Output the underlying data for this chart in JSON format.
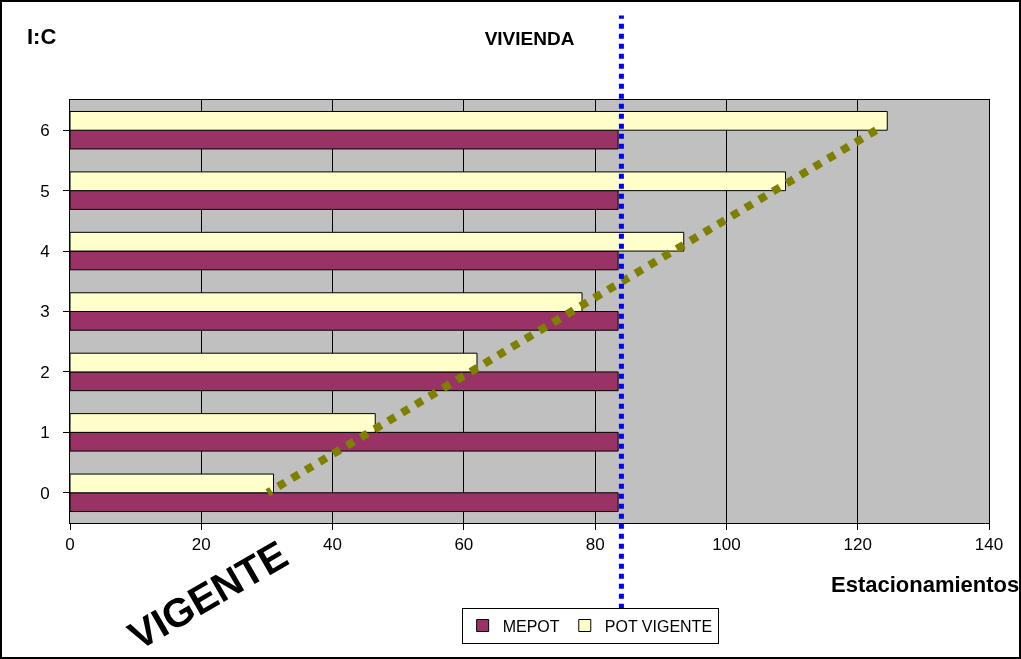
{
  "chart_data": {
    "type": "bar",
    "orientation": "horizontal",
    "title": "VIVIENDA",
    "xlabel": "Estacionamientos",
    "categories": [
      "6",
      "5",
      "4",
      "3",
      "2",
      "1",
      "0"
    ],
    "series": [
      {
        "name": "MEPOT",
        "color": "#993366",
        "values": [
          83.5,
          83.5,
          83.5,
          83.5,
          83.5,
          83.5,
          83.5
        ]
      },
      {
        "name": "POT VIGENTE",
        "color": "#ffffcc",
        "values": [
          124.5,
          109,
          93.5,
          78,
          62,
          46.5,
          31
        ]
      },
      {
        "type": "line",
        "color": "#808000",
        "line_style": "dotted",
        "values": [
          122.8,
          107.3,
          91.9,
          76.4,
          61,
          45.6,
          30.1
        ]
      }
    ],
    "xlim": [
      0,
      140
    ],
    "xticks": [
      0,
      20,
      40,
      60,
      80,
      100,
      120,
      140
    ],
    "grid": "x",
    "legend": "bottom",
    "ref_lines": [
      {
        "axis": "x",
        "value": 84,
        "color": "#0000ff",
        "line_style": "dotted"
      }
    ],
    "annotations": [
      "I:C",
      "VIGENTE"
    ]
  }
}
